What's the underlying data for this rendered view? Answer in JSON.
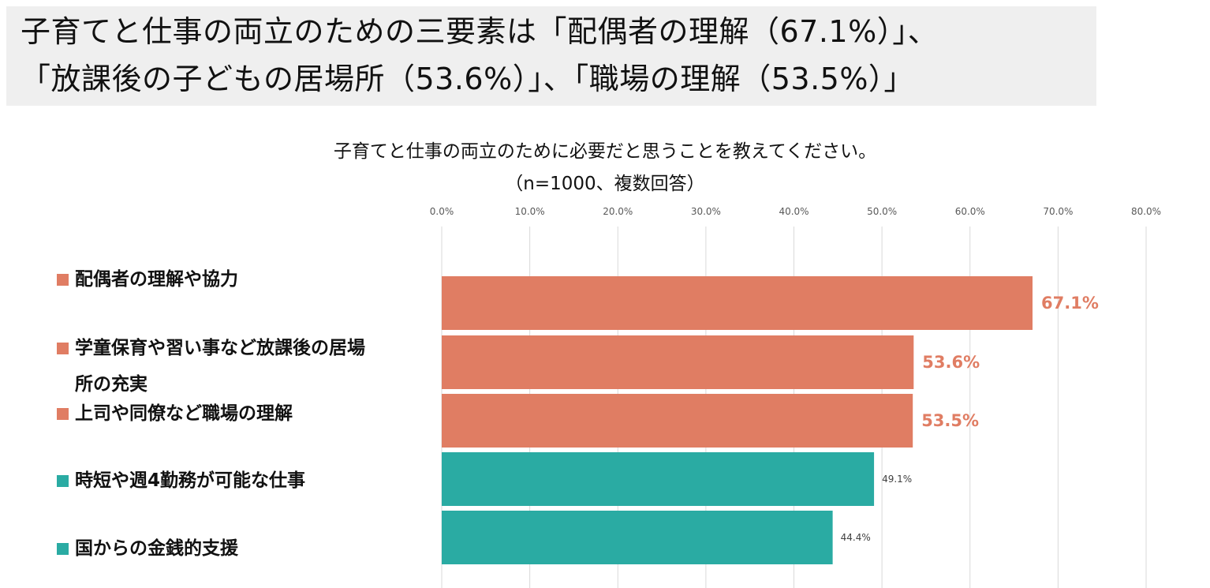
{
  "headline": {
    "line1": "子育てと仕事の両立のための三要素は「配偶者の理解（67.1%）」、",
    "line2": "「放課後の子どもの居場所（53.6%）」、「職場の理解（53.5%）」"
  },
  "chart_data": {
    "type": "bar",
    "orientation": "horizontal",
    "title": "子育てと仕事の両立のために必要だと思うことを教えてください。",
    "subtitle": "（n=1000、複数回答）",
    "xlim": [
      0,
      80
    ],
    "x_ticks": [
      "0.0%",
      "10.0%",
      "20.0%",
      "30.0%",
      "40.0%",
      "50.0%",
      "60.0%",
      "70.0%",
      "80.0%"
    ],
    "grid": true,
    "categories": [
      "配偶者の理解や協力",
      "学童保育や習い事など放課後の居場所の充実",
      "上司や同僚など職場の理解",
      "時短や週4勤務が可能な仕事",
      "国からの金銭的支援"
    ],
    "values": [
      67.1,
      53.6,
      53.5,
      49.1,
      44.4
    ],
    "data_labels": [
      "67.1%",
      "53.6%",
      "53.5%",
      "49.1%",
      "44.4%"
    ],
    "highlighted": [
      true,
      true,
      true,
      false,
      false
    ],
    "colors": {
      "highlight": "#e07d63",
      "normal": "#2aaba3",
      "grid": "#d9d9d9",
      "tick_text": "#595959",
      "small_label_text": "#404040"
    }
  }
}
